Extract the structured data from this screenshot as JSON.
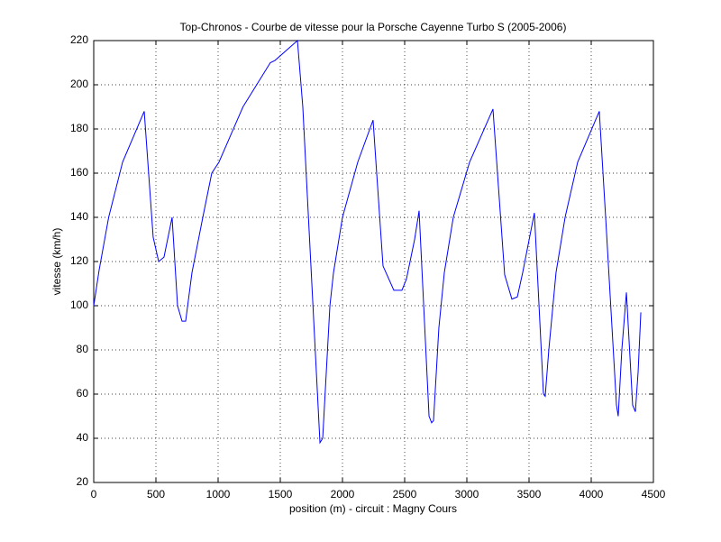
{
  "chart_data": {
    "type": "line",
    "title": "Top-Chronos - Courbe de vitesse pour la Porsche Cayenne Turbo S (2005-2006)",
    "x_label": "position (m) - circuit : Magny Cours",
    "y_label": "vitesse (km/h)",
    "x": [
      0,
      43,
      120,
      232,
      406,
      478,
      522,
      565,
      630,
      674,
      710,
      739,
      790,
      877,
      949,
      1007,
      1200,
      1420,
      1457,
      1638,
      1681,
      1819,
      1841,
      1899,
      1928,
      2000,
      2123,
      2246,
      2326,
      2413,
      2478,
      2514,
      2580,
      2616,
      2696,
      2717,
      2732,
      2775,
      2819,
      2891,
      3022,
      3210,
      3304,
      3362,
      3406,
      3449,
      3543,
      3616,
      3630,
      3659,
      3717,
      3790,
      3891,
      4065,
      4116,
      4203,
      4217,
      4246,
      4283,
      4333,
      4355,
      4377,
      4399
    ],
    "values": [
      100,
      116,
      140,
      165,
      188,
      131,
      120,
      122,
      140,
      100,
      93,
      93,
      115,
      140,
      160,
      165,
      190,
      210,
      211,
      220,
      190,
      38,
      40,
      100,
      115,
      140,
      165,
      184,
      118,
      107,
      107,
      112,
      130,
      143,
      50,
      47,
      48,
      90,
      115,
      140,
      165,
      189,
      114,
      103,
      104,
      115,
      142,
      60,
      59,
      80,
      115,
      140,
      165,
      188,
      140,
      55,
      50,
      80,
      106,
      55,
      52,
      70,
      97
    ],
    "color": "#0000ff",
    "xlim": [
      0,
      4500
    ],
    "xticks": [
      0,
      500,
      1000,
      1500,
      2000,
      2500,
      3000,
      3500,
      4000,
      4500
    ],
    "ylim": [
      20,
      220
    ],
    "yticks": [
      20,
      40,
      60,
      80,
      100,
      120,
      140,
      160,
      180,
      200,
      220
    ],
    "grid": true
  }
}
